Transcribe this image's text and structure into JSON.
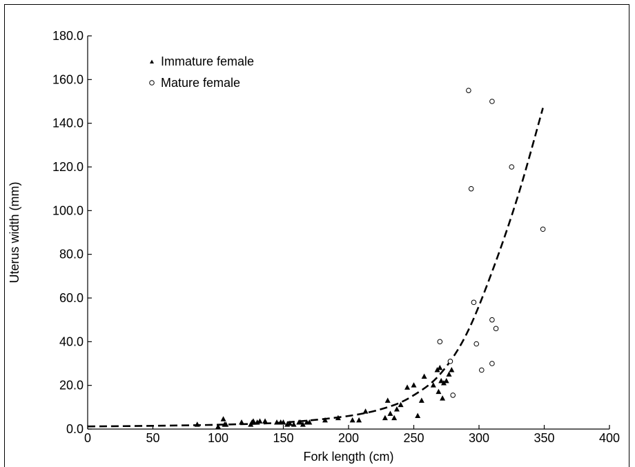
{
  "chart_data": {
    "type": "scatter",
    "title": "",
    "xlabel": "Fork length (cm)",
    "ylabel": "Uterus width (mm)",
    "xlim": [
      0,
      400
    ],
    "ylim": [
      0,
      180
    ],
    "x_ticks": [
      "0",
      "50",
      "100",
      "150",
      "200",
      "250",
      "300",
      "350",
      "400"
    ],
    "y_ticks": [
      "0.0",
      "20.0",
      "40.0",
      "60.0",
      "80.0",
      "100.0",
      "120.0",
      "140.0",
      "160.0",
      "180.0"
    ],
    "grid": false,
    "legend_position": "top-left",
    "series": [
      {
        "name": "Immature female",
        "marker": "filled-triangle",
        "color": "#000000",
        "points": [
          [
            84,
            2
          ],
          [
            100,
            1
          ],
          [
            104,
            4.5
          ],
          [
            105,
            2
          ],
          [
            106,
            2
          ],
          [
            118,
            3
          ],
          [
            125,
            2
          ],
          [
            126,
            3
          ],
          [
            127,
            3.5
          ],
          [
            130,
            3
          ],
          [
            132,
            3.5
          ],
          [
            136,
            3.5
          ],
          [
            145,
            3
          ],
          [
            148,
            3
          ],
          [
            150,
            3
          ],
          [
            153,
            2
          ],
          [
            155,
            2.5
          ],
          [
            158,
            2
          ],
          [
            162,
            3
          ],
          [
            163,
            3
          ],
          [
            165,
            2
          ],
          [
            168,
            3
          ],
          [
            170,
            3
          ],
          [
            182,
            4
          ],
          [
            192,
            5
          ],
          [
            203,
            4
          ],
          [
            208,
            4
          ],
          [
            213,
            8
          ],
          [
            228,
            5
          ],
          [
            230,
            13
          ],
          [
            232,
            7
          ],
          [
            235,
            5
          ],
          [
            237,
            9
          ],
          [
            240,
            11
          ],
          [
            245,
            19
          ],
          [
            250,
            20
          ],
          [
            253,
            6
          ],
          [
            256,
            13
          ],
          [
            258,
            24
          ],
          [
            265,
            20
          ],
          [
            268,
            27
          ],
          [
            269,
            17
          ],
          [
            270,
            28
          ],
          [
            271,
            22
          ],
          [
            272,
            14
          ],
          [
            273,
            21
          ],
          [
            275,
            22
          ],
          [
            277,
            25
          ],
          [
            279,
            27
          ]
        ]
      },
      {
        "name": "Mature female",
        "marker": "open-circle",
        "color": "#000000",
        "points": [
          [
            270,
            40
          ],
          [
            278,
            31
          ],
          [
            280,
            15.5
          ],
          [
            292,
            155
          ],
          [
            294,
            110
          ],
          [
            296,
            58
          ],
          [
            298,
            39
          ],
          [
            302,
            27
          ],
          [
            310,
            150
          ],
          [
            310,
            50
          ],
          [
            310,
            30
          ],
          [
            313,
            46
          ],
          [
            325,
            120
          ],
          [
            349,
            91.5
          ]
        ]
      }
    ],
    "fit_curve": {
      "style": "dashed",
      "points": [
        [
          0,
          1.2
        ],
        [
          50,
          1.5
        ],
        [
          100,
          2
        ],
        [
          150,
          3
        ],
        [
          200,
          6
        ],
        [
          230,
          10
        ],
        [
          250,
          15.5
        ],
        [
          270,
          25
        ],
        [
          290,
          43
        ],
        [
          310,
          72
        ],
        [
          330,
          107
        ],
        [
          349,
          147
        ]
      ]
    }
  }
}
